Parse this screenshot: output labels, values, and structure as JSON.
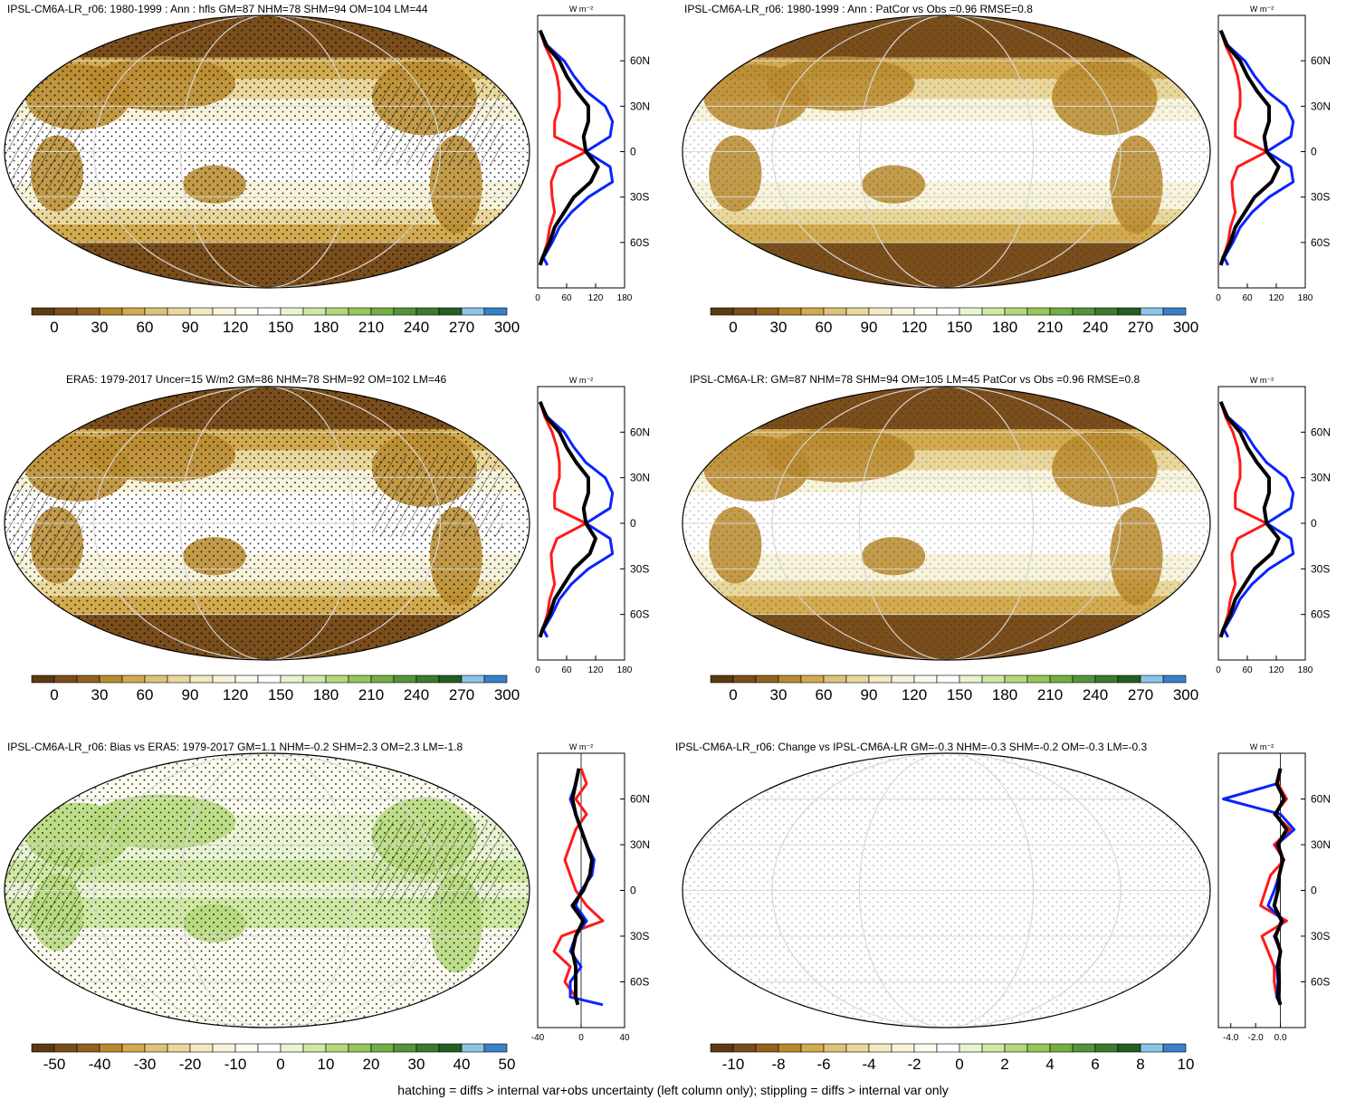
{
  "colors": {
    "full": [
      "#5c3a12",
      "#7a4e1c",
      "#94621f",
      "#b88a2e",
      "#d2aa4f",
      "#dfc27a",
      "#e9d79c",
      "#f2e9c0",
      "#f8f4dc",
      "#fbfbf0",
      "#ffffff",
      "#e9f4d2",
      "#cfe8a3",
      "#b4d879",
      "#96c55a",
      "#73ae45",
      "#55933a",
      "#3c7a2e",
      "#245e22",
      "#8cc4e6",
      "#3a80c8"
    ],
    "line_model": "#000000",
    "line_obs": "#0a24ff",
    "line_red": "#ff1a1a",
    "stipple": "#000000"
  },
  "footer": "hatching = diffs > internal var+obs uncertainty (left column only); stippling = diffs > internal var only",
  "profile_unit": "W m⁻²",
  "lat_ticks": [
    "60N",
    "30N",
    "0",
    "30S",
    "60S"
  ],
  "panels": [
    {
      "title": "IPSL-CM6A-LR_r06: 1980-1999 : Ann : hfls GM=87 NHM=78 SHM=94 OM=104 LM=44",
      "cbar_labels": [
        "0",
        "30",
        "60",
        "90",
        "120",
        "150",
        "180",
        "210",
        "240",
        "270",
        "300"
      ],
      "profile_ticks": [
        "0",
        "60",
        "120",
        "180"
      ]
    },
    {
      "title": "IPSL-CM6A-LR_r06: 1980-1999 : Ann : PatCor vs Obs =0.96 RMSE=0.8",
      "cbar_labels": [
        "0",
        "30",
        "60",
        "90",
        "120",
        "150",
        "180",
        "210",
        "240",
        "270",
        "300"
      ],
      "profile_ticks": [
        "0",
        "60",
        "120",
        "180"
      ]
    },
    {
      "title": "ERA5: 1979-2017 Uncer=15 W/m2 GM=86 NHM=78 SHM=92 OM=102 LM=46",
      "cbar_labels": [
        "0",
        "30",
        "60",
        "90",
        "120",
        "150",
        "180",
        "210",
        "240",
        "270",
        "300"
      ],
      "profile_ticks": [
        "0",
        "60",
        "120",
        "180"
      ]
    },
    {
      "title": "IPSL-CM6A-LR: GM=87 NHM=78 SHM=94 OM=105 LM=45 PatCor vs Obs =0.96 RMSE=0.8",
      "cbar_labels": [
        "0",
        "30",
        "60",
        "90",
        "120",
        "150",
        "180",
        "210",
        "240",
        "270",
        "300"
      ],
      "profile_ticks": [
        "0",
        "60",
        "120",
        "180"
      ]
    },
    {
      "title": "IPSL-CM6A-LR_r06: Bias vs ERA5: 1979-2017 GM=1.1 NHM=-0.2 SHM=2.3 OM=2.3 LM=-1.8",
      "cbar_labels": [
        "-50",
        "-40",
        "-30",
        "-20",
        "-10",
        "0",
        "10",
        "20",
        "30",
        "40",
        "50"
      ],
      "profile_ticks": [
        "-40",
        "0",
        "40"
      ]
    },
    {
      "title": "IPSL-CM6A-LR_r06: Change vs IPSL-CM6A-LR GM=-0.3 NHM=-0.3 SHM=-0.2 OM=-0.3 LM=-0.3",
      "cbar_labels": [
        "-10",
        "-8",
        "-6",
        "-4",
        "-2",
        "0",
        "2",
        "4",
        "6",
        "8",
        "10"
      ],
      "profile_ticks": [
        "-4.0",
        "-2.0",
        "0.0"
      ]
    }
  ],
  "chart_data": [
    {
      "type": "line",
      "title": "IPSL-CM6A-LR_r06: 1980-1999 : Ann : hfls GM=87 NHM=78 SHM=94 OM=104 LM=44",
      "xlim": [
        0,
        180
      ],
      "ylim": [
        -90,
        90
      ],
      "x_ticks": [
        0,
        60,
        120,
        180
      ],
      "y_ticks": [
        "60N",
        "30N",
        "0",
        "30S",
        "60S"
      ],
      "series": [
        {
          "lat": [
            80,
            70,
            60,
            50,
            40,
            30,
            20,
            10,
            0,
            -10,
            -20,
            -30,
            -40,
            -50,
            -60,
            -70,
            -75
          ],
          "values": [
            5,
            18,
            45,
            60,
            80,
            105,
            105,
            95,
            100,
            125,
            110,
            75,
            55,
            35,
            25,
            10,
            5
          ]
        },
        {
          "lat": [
            80,
            70,
            60,
            50,
            40,
            30,
            20,
            10,
            0,
            -10,
            -20,
            -30,
            -40,
            -50,
            -60,
            -70,
            -75
          ],
          "values": [
            5,
            20,
            55,
            75,
            100,
            140,
            155,
            150,
            100,
            150,
            155,
            105,
            70,
            45,
            30,
            12,
            20
          ]
        },
        {
          "lat": [
            80,
            70,
            60,
            50,
            40,
            30,
            20,
            10,
            0,
            -10,
            -20,
            -30,
            -40,
            -50,
            -60,
            -70,
            -75
          ],
          "values": [
            5,
            15,
            30,
            40,
            45,
            45,
            35,
            35,
            100,
            40,
            28,
            30,
            35,
            25,
            20,
            10,
            5
          ]
        }
      ]
    },
    {
      "type": "line",
      "title": "IPSL-CM6A-LR_r06: 1980-1999 : Ann : PatCor vs Obs =0.96 RMSE=0.8",
      "xlim": [
        0,
        180
      ],
      "ylim": [
        -90,
        90
      ],
      "x_ticks": [
        0,
        60,
        120,
        180
      ],
      "y_ticks": [
        "60N",
        "30N",
        "0",
        "30S",
        "60S"
      ],
      "series": [
        {
          "lat": [
            80,
            70,
            60,
            50,
            40,
            30,
            20,
            10,
            0,
            -10,
            -20,
            -30,
            -40,
            -50,
            -60,
            -70,
            -75
          ],
          "values": [
            5,
            18,
            45,
            60,
            80,
            105,
            105,
            95,
            100,
            125,
            110,
            75,
            55,
            35,
            25,
            10,
            5
          ]
        },
        {
          "lat": [
            80,
            70,
            60,
            50,
            40,
            30,
            20,
            10,
            0,
            -10,
            -20,
            -30,
            -40,
            -50,
            -60,
            -70,
            -75
          ],
          "values": [
            5,
            20,
            55,
            75,
            100,
            140,
            155,
            150,
            100,
            150,
            155,
            105,
            70,
            45,
            30,
            12,
            20
          ]
        },
        {
          "lat": [
            80,
            70,
            60,
            50,
            40,
            30,
            20,
            10,
            0,
            -10,
            -20,
            -30,
            -40,
            -50,
            -60,
            -70,
            -75
          ],
          "values": [
            5,
            15,
            30,
            40,
            45,
            45,
            35,
            35,
            100,
            40,
            28,
            30,
            35,
            25,
            20,
            10,
            5
          ]
        }
      ]
    },
    {
      "type": "line",
      "title": "ERA5: 1979-2017 Uncer=15 W/m2 GM=86 NHM=78 SHM=92 OM=102 LM=46",
      "xlim": [
        0,
        180
      ],
      "ylim": [
        -90,
        90
      ],
      "x_ticks": [
        0,
        60,
        120,
        180
      ],
      "y_ticks": [
        "60N",
        "30N",
        "0",
        "30S",
        "60S"
      ],
      "series": [
        {
          "lat": [
            80,
            70,
            60,
            50,
            40,
            30,
            20,
            10,
            0,
            -10,
            -20,
            -30,
            -40,
            -50,
            -60,
            -70,
            -75
          ],
          "values": [
            5,
            18,
            45,
            60,
            80,
            105,
            105,
            95,
            100,
            120,
            108,
            75,
            55,
            35,
            25,
            10,
            5
          ]
        },
        {
          "lat": [
            80,
            70,
            60,
            50,
            40,
            30,
            20,
            10,
            0,
            -10,
            -20,
            -30,
            -40,
            -50,
            -60,
            -70,
            -75
          ],
          "values": [
            5,
            20,
            55,
            75,
            100,
            140,
            155,
            150,
            100,
            150,
            155,
            105,
            70,
            45,
            30,
            12,
            20
          ]
        },
        {
          "lat": [
            80,
            70,
            60,
            50,
            40,
            30,
            20,
            10,
            0,
            -10,
            -20,
            -30,
            -40,
            -50,
            -60,
            -70,
            -75
          ],
          "values": [
            5,
            15,
            30,
            40,
            45,
            45,
            35,
            35,
            100,
            40,
            28,
            30,
            35,
            25,
            20,
            10,
            5
          ]
        }
      ]
    },
    {
      "type": "line",
      "title": "IPSL-CM6A-LR: GM=87 NHM=78 SHM=94 OM=105 LM=45 PatCor vs Obs =0.96 RMSE=0.8",
      "xlim": [
        0,
        180
      ],
      "ylim": [
        -90,
        90
      ],
      "x_ticks": [
        0,
        60,
        120,
        180
      ],
      "y_ticks": [
        "60N",
        "30N",
        "0",
        "30S",
        "60S"
      ],
      "series": [
        {
          "lat": [
            80,
            70,
            60,
            50,
            40,
            30,
            20,
            10,
            0,
            -10,
            -20,
            -30,
            -40,
            -50,
            -60,
            -70,
            -75
          ],
          "values": [
            5,
            18,
            45,
            60,
            80,
            105,
            105,
            95,
            100,
            125,
            110,
            75,
            55,
            35,
            25,
            10,
            5
          ]
        },
        {
          "lat": [
            80,
            70,
            60,
            50,
            40,
            30,
            20,
            10,
            0,
            -10,
            -20,
            -30,
            -40,
            -50,
            -60,
            -70,
            -75
          ],
          "values": [
            5,
            20,
            55,
            75,
            100,
            140,
            155,
            150,
            100,
            150,
            155,
            105,
            70,
            45,
            30,
            12,
            20
          ]
        },
        {
          "lat": [
            80,
            70,
            60,
            50,
            40,
            30,
            20,
            10,
            0,
            -10,
            -20,
            -30,
            -40,
            -50,
            -60,
            -70,
            -75
          ],
          "values": [
            5,
            15,
            30,
            40,
            45,
            45,
            35,
            35,
            100,
            40,
            28,
            30,
            35,
            25,
            20,
            10,
            5
          ]
        }
      ]
    },
    {
      "type": "line",
      "title": "IPSL-CM6A-LR_r06: Bias vs ERA5: 1979-2017 GM=1.1 NHM=-0.2 SHM=2.3 OM=2.3 LM=-1.8",
      "xlim": [
        -40,
        40
      ],
      "ylim": [
        -90,
        90
      ],
      "x_ticks": [
        -40,
        0,
        40
      ],
      "y_ticks": [
        "60N",
        "30N",
        "0",
        "30S",
        "60S"
      ],
      "series": [
        {
          "lat": [
            80,
            70,
            60,
            50,
            40,
            30,
            20,
            10,
            0,
            -10,
            -20,
            -30,
            -40,
            -50,
            -60,
            -70,
            -75
          ],
          "values": [
            -2,
            -5,
            -8,
            -5,
            0,
            5,
            10,
            8,
            2,
            -8,
            2,
            -5,
            -8,
            -5,
            -5,
            -5,
            -3
          ]
        },
        {
          "lat": [
            80,
            70,
            60,
            50,
            40,
            30,
            20,
            10,
            0,
            -10,
            -20,
            -30,
            -40,
            -50,
            -60,
            -70,
            -75
          ],
          "values": [
            -2,
            -5,
            -10,
            -5,
            0,
            5,
            12,
            10,
            0,
            -5,
            5,
            -5,
            -10,
            0,
            -10,
            -10,
            20
          ]
        },
        {
          "lat": [
            80,
            70,
            60,
            50,
            40,
            30,
            20,
            10,
            0,
            -10,
            -20,
            -30,
            -40,
            -50,
            -60,
            -70,
            -75
          ],
          "values": [
            0,
            5,
            -5,
            5,
            -5,
            -10,
            -15,
            -10,
            -5,
            5,
            20,
            -18,
            -25,
            -10,
            -15,
            -5,
            -3
          ]
        }
      ]
    },
    {
      "type": "line",
      "title": "IPSL-CM6A-LR_r06: Change vs IPSL-CM6A-LR GM=-0.3 NHM=-0.3 SHM=-0.2 OM=-0.3 LM=-0.3",
      "xlim": [
        -5,
        2
      ],
      "ylim": [
        -90,
        90
      ],
      "x_ticks": [
        -4.0,
        -2.0,
        0.0
      ],
      "y_ticks": [
        "60N",
        "30N",
        "0",
        "30S",
        "60S"
      ],
      "series": [
        {
          "lat": [
            80,
            70,
            60,
            50,
            40,
            30,
            20,
            10,
            0,
            -10,
            -20,
            -30,
            -40,
            -50,
            -60,
            -70,
            -75
          ],
          "values": [
            0,
            -0.3,
            0.3,
            -0.4,
            0.5,
            -0.2,
            0.2,
            -0.1,
            -0.2,
            -0.5,
            0.1,
            -0.4,
            0,
            -0.2,
            -0.1,
            -0.2,
            0
          ]
        },
        {
          "lat": [
            80,
            70,
            60,
            50,
            40,
            30,
            20,
            10,
            0,
            -10,
            -20,
            -30,
            -40,
            -50,
            -60,
            -70,
            -75
          ],
          "values": [
            0,
            -0.3,
            -4.6,
            0,
            1.1,
            -0.3,
            0.2,
            -0.1,
            -0.5,
            -1.0,
            0.2,
            -0.5,
            0,
            -0.3,
            -0.2,
            -0.3,
            0
          ]
        },
        {
          "lat": [
            80,
            70,
            60,
            50,
            40,
            30,
            20,
            10,
            0,
            -10,
            -20,
            -30,
            -40,
            -50,
            -60,
            -70,
            -75
          ],
          "values": [
            0,
            -0.2,
            0.5,
            -0.5,
            0.8,
            -0.5,
            0.3,
            -0.8,
            -1.2,
            -1.6,
            0.5,
            -1.5,
            -1.0,
            -0.5,
            -0.5,
            -0.3,
            0
          ]
        }
      ]
    }
  ]
}
